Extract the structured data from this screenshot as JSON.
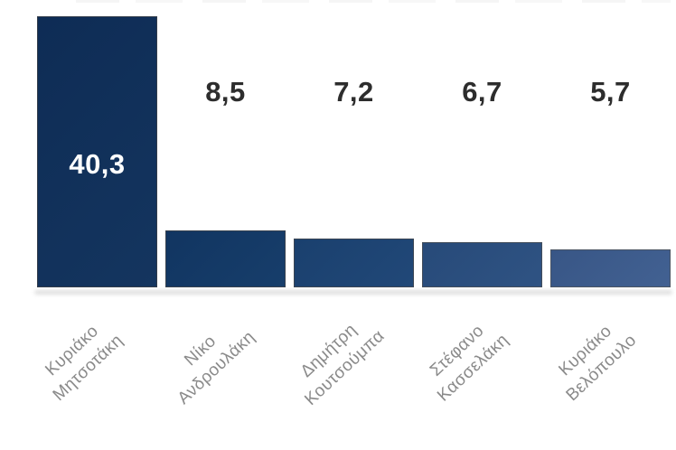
{
  "page": {
    "background": "#ffffff"
  },
  "chart_data": {
    "type": "bar",
    "title": "",
    "xlabel": "",
    "ylabel": "",
    "grid": false,
    "legend": false,
    "ylim": [
      0,
      40.3
    ],
    "decimal_style": "comma",
    "categories": [
      "Κυριάκο Μητσοτάκη",
      "Νίκο Ανδρουλάκη",
      "Δημήτρη Κουτσούμπα",
      "Στέφανο Κασσελάκη",
      "Κυριάκο Βελόπουλο"
    ],
    "values": [
      40.3,
      8.5,
      7.2,
      6.7,
      5.7
    ],
    "axis_label_color": "#8a8a8a",
    "value_label_color_above": "#2d2d2d",
    "value_label_color_inside": "#ffffff",
    "bar_border_color": "#3c4654",
    "bars": [
      {
        "category_line1": "Κυριάκο",
        "category_line2": "Μητσοτάκη",
        "value": 40.3,
        "value_label": "40,3",
        "value_label_position": "inside",
        "color": "#0e2c55",
        "color_light": "#14355f",
        "border_color": "#323c4a"
      },
      {
        "category_line1": "Νίκο",
        "category_line2": "Ανδρουλάκη",
        "value": 8.5,
        "value_label": "8,5",
        "value_label_position": "above",
        "color": "#113561",
        "color_light": "#173e6b",
        "border_color": "#38424f"
      },
      {
        "category_line1": "Δημήτρη",
        "category_line2": "Κουτσούμπα",
        "value": 7.2,
        "value_label": "7,2",
        "value_label_position": "above",
        "color": "#1a406e",
        "color_light": "#214878",
        "border_color": "#3c4654"
      },
      {
        "category_line1": "Στέφανο",
        "category_line2": "Κασσελάκη",
        "value": 6.7,
        "value_label": "6,7",
        "value_label_position": "above",
        "color": "#274a79",
        "color_light": "#2f5383",
        "border_color": "#434d5b"
      },
      {
        "category_line1": "Κυριάκο",
        "category_line2": "Βελόπουλο",
        "value": 5.7,
        "value_label": "5,7",
        "value_label_position": "above",
        "color": "#385686",
        "color_light": "#426192",
        "border_color": "#4b5563"
      }
    ]
  }
}
